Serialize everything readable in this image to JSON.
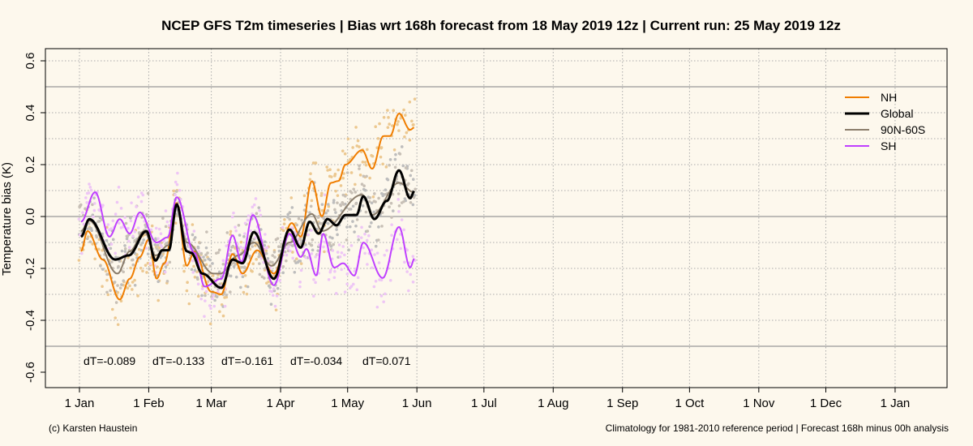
{
  "chart_data": {
    "type": "line",
    "title": "NCEP GFS T2m timeseries | Bias wrt 168h forecast from 18 May 2019 12z | Current run: 25 May 2019 12z",
    "ylabel": "Temperature bias (K)",
    "xlabel": "",
    "ylim": [
      -0.65,
      0.65
    ],
    "xlim_days": [
      -15,
      390
    ],
    "yticks": [
      -0.6,
      -0.4,
      -0.2,
      0.0,
      0.2,
      0.4,
      0.6
    ],
    "ytick_labels": [
      "-0.6",
      "-0.4",
      "-0.2",
      "0.0",
      "0.2",
      "0.4",
      "0.6"
    ],
    "ygrid": [
      -0.5,
      -0.4,
      -0.3,
      -0.2,
      -0.1,
      0.1,
      0.2,
      0.3,
      0.4,
      0.5,
      0.6
    ],
    "reference_lines": [
      -0.5,
      0.0,
      0.5
    ],
    "xticks_days": [
      0,
      31,
      59,
      90,
      120,
      151,
      181,
      212,
      243,
      273,
      304,
      334,
      365
    ],
    "xtick_labels": [
      "1 Jan",
      "1 Feb",
      "1 Mar",
      "1 Apr",
      "1 May",
      "1 Jun",
      "1 Jul",
      "1 Aug",
      "1 Sep",
      "1 Oct",
      "1 Nov",
      "1 Dec",
      "1 Jan"
    ],
    "legend_position": "top-right",
    "series": [
      {
        "name": "NH",
        "color": "#f07d00",
        "width": 2,
        "x": [
          0.7,
          3.6,
          10.5,
          18,
          22.5,
          27,
          31,
          34.5,
          38,
          43.5,
          48,
          51.5,
          59,
          63.5,
          68.5,
          73,
          79.5,
          87,
          95,
          99,
          104,
          108.5,
          112.5,
          116,
          119,
          126.5,
          131,
          136,
          139,
          143,
          148,
          150
        ],
        "y": [
          -0.134,
          -0.056,
          -0.166,
          -0.32,
          -0.24,
          -0.156,
          -0.088,
          -0.24,
          -0.18,
          0.053,
          -0.19,
          -0.134,
          -0.29,
          -0.3,
          -0.144,
          -0.22,
          -0.13,
          -0.22,
          -0.025,
          -0.078,
          0.137,
          0.0,
          0.13,
          0.137,
          0.2,
          0.256,
          0.184,
          0.31,
          0.31,
          0.397,
          0.334,
          0.344
        ]
      },
      {
        "name": "Global",
        "color": "#000000",
        "width": 3,
        "x": [
          0.7,
          4.4,
          16,
          22,
          30,
          34,
          37,
          40,
          43.5,
          48,
          50,
          55,
          63.5,
          68.5,
          73,
          78,
          87,
          94,
          99,
          103,
          107,
          111,
          115,
          119,
          124,
          127,
          132,
          137.5,
          143,
          148,
          150
        ],
        "y": [
          -0.078,
          -0.01,
          -0.166,
          -0.15,
          -0.056,
          -0.17,
          -0.13,
          -0.13,
          0.047,
          -0.134,
          -0.14,
          -0.22,
          -0.275,
          -0.166,
          -0.18,
          -0.06,
          -0.24,
          -0.05,
          -0.12,
          -0.02,
          -0.066,
          -0.01,
          -0.034,
          0.006,
          0.006,
          0.078,
          -0.01,
          0.06,
          0.178,
          0.07,
          0.1
        ]
      },
      {
        "name": "90N-60S",
        "color": "#8b7d6b",
        "width": 2,
        "x": [
          0.7,
          4.4,
          17,
          22.5,
          29,
          34,
          40,
          43.5,
          48,
          60,
          63,
          71,
          78,
          86,
          94,
          104,
          108.5,
          126.5,
          131,
          143,
          149.5
        ],
        "y": [
          -0.056,
          -0.016,
          -0.22,
          -0.134,
          -0.056,
          -0.15,
          -0.11,
          0.05,
          -0.1,
          -0.22,
          -0.22,
          -0.15,
          -0.1,
          -0.19,
          -0.1,
          0.01,
          -0.056,
          0.084,
          0.006,
          0.13,
          0.094
        ]
      },
      {
        "name": "SH",
        "color": "#bf3fff",
        "width": 2,
        "x": [
          0.7,
          7,
          13.4,
          18,
          22.5,
          27,
          34.5,
          39.5,
          43.5,
          51.5,
          56,
          63.5,
          68.5,
          72.5,
          77.6,
          87,
          94,
          99,
          101.6,
          106,
          109,
          114,
          118,
          123,
          127,
          135.7,
          143,
          148,
          150
        ],
        "y": [
          -0.02,
          0.094,
          -0.078,
          -0.01,
          -0.066,
          0.016,
          -0.1,
          -0.08,
          0.075,
          -0.14,
          -0.27,
          -0.24,
          -0.072,
          -0.175,
          0.006,
          -0.265,
          -0.066,
          -0.156,
          -0.125,
          -0.228,
          -0.066,
          -0.197,
          -0.18,
          -0.228,
          -0.1,
          -0.237,
          -0.04,
          -0.197,
          -0.16
        ]
      }
    ],
    "annotations": [
      "dT=-0.089",
      "dT=-0.133",
      "dT=-0.161",
      "dT=-0.034",
      "dT=0.071"
    ]
  },
  "footer": {
    "left": "(c) Karsten Haustein",
    "right": "Climatology for 1981-2010 reference period | Forecast 168h minus 00h analysis"
  }
}
